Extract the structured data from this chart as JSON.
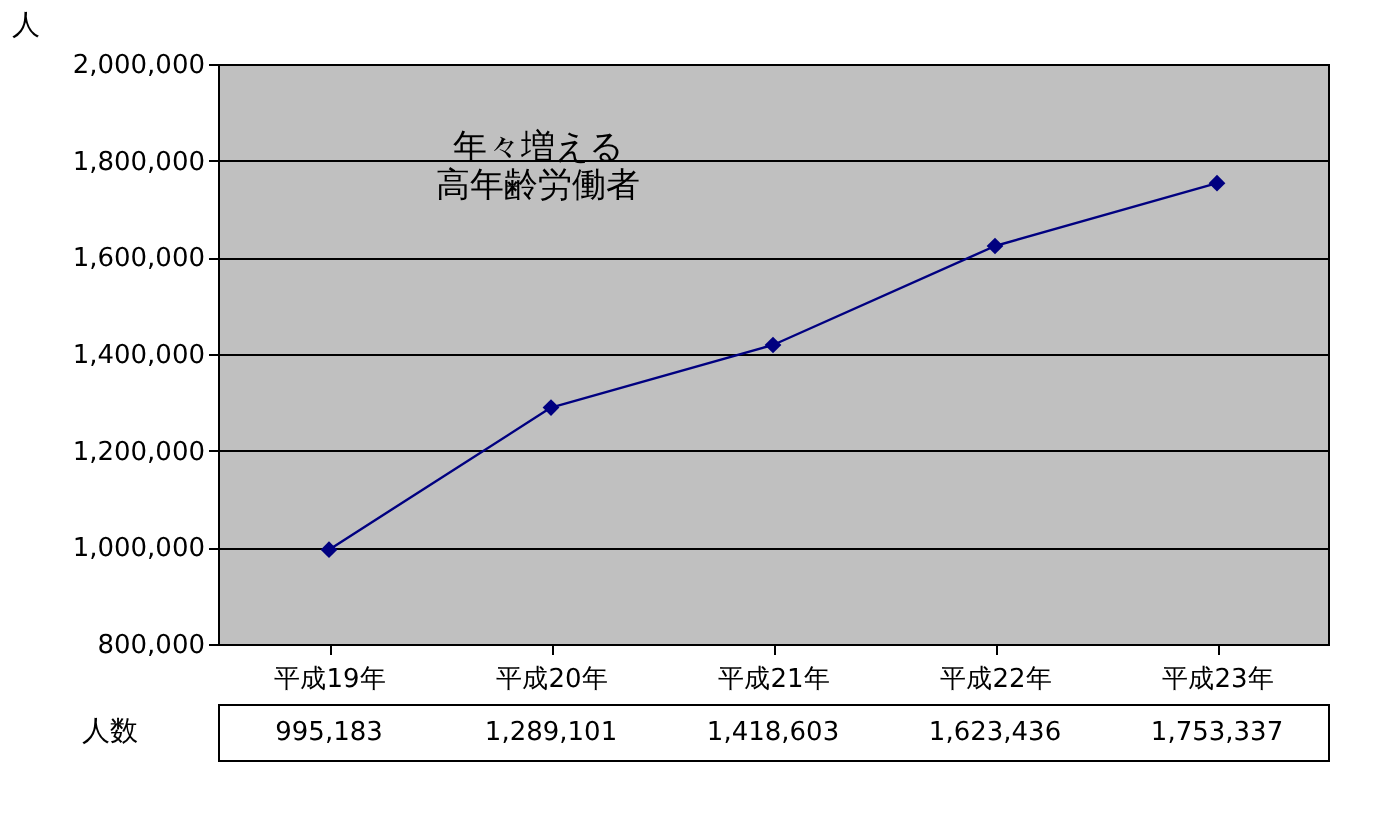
{
  "chart_data": {
    "type": "line",
    "ylabel": "人",
    "categories": [
      "平成19年",
      "平成20年",
      "平成21年",
      "平成22年",
      "平成23年"
    ],
    "series": [
      {
        "name": "人数",
        "color": "#000080",
        "values": [
          995183,
          1289101,
          1418603,
          1623436,
          1753337
        ],
        "value_labels": [
          "995,183",
          "1,289,101",
          "1,418,603",
          "1,623,436",
          "1,753,337"
        ]
      }
    ],
    "ylim": [
      800000,
      2000000
    ],
    "yticks": [
      {
        "value": 800000,
        "label": "800,000"
      },
      {
        "value": 1000000,
        "label": "1,000,000"
      },
      {
        "value": 1200000,
        "label": "1,200,000"
      },
      {
        "value": 1400000,
        "label": "1,400,000"
      },
      {
        "value": 1600000,
        "label": "1,600,000"
      },
      {
        "value": 1800000,
        "label": "1,800,000"
      },
      {
        "value": 2000000,
        "label": "2,000,000"
      }
    ],
    "grid": "y",
    "marker": "diamond",
    "line_style": "solid",
    "annotations": [
      "年々増える高年齢労働者"
    ]
  }
}
